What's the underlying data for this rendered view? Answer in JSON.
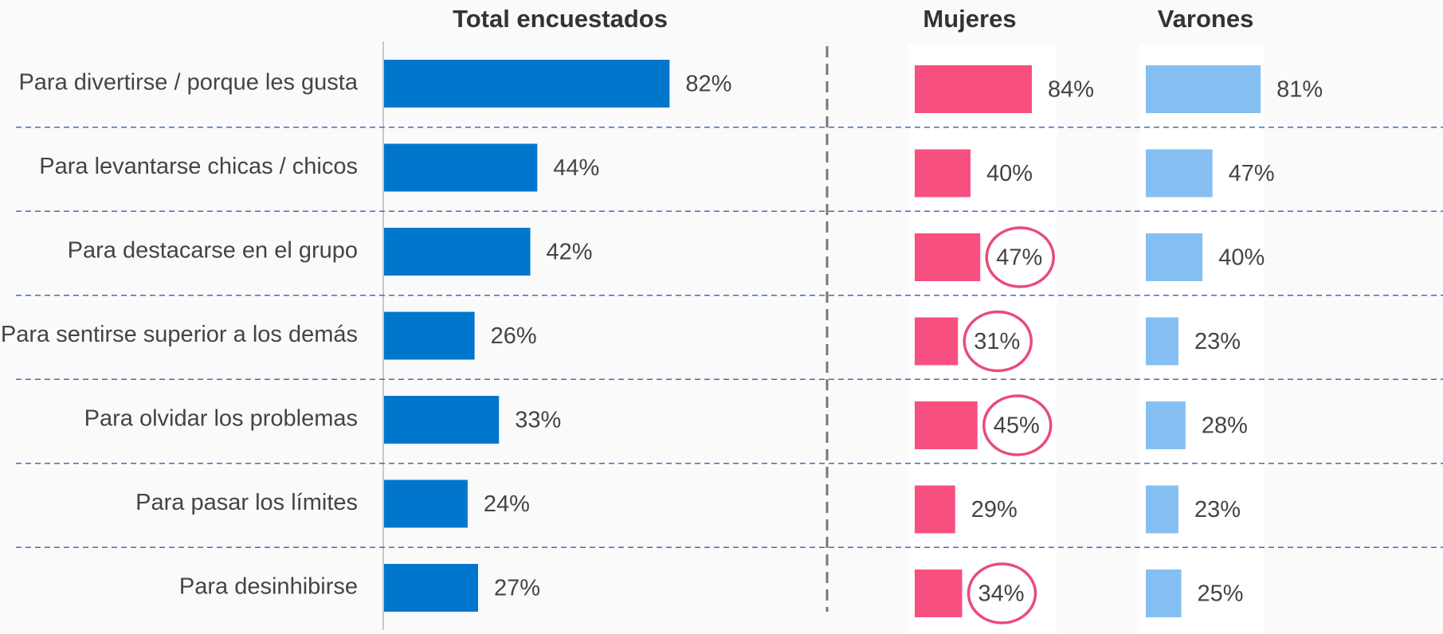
{
  "chart_data": {
    "type": "bar",
    "orientation": "horizontal",
    "categories": [
      "Para divertirse / porque les gusta",
      "Para levantarse chicas / chicos",
      "Para destacarse en el grupo",
      "Para sentirse superior a los demás",
      "Para olvidar los problemas",
      "Para pasar los límites",
      "Para desinhibirse"
    ],
    "xlim": [
      0,
      100
    ],
    "series": [
      {
        "name": "Total encuestados",
        "color": "#0077cc",
        "values": [
          82,
          44,
          42,
          26,
          33,
          24,
          27
        ],
        "value_labels": [
          "82%",
          "44%",
          "42%",
          "26%",
          "33%",
          "24%",
          "27%"
        ]
      },
      {
        "name": "Mujeres",
        "color": "#f74f7f",
        "values": [
          84,
          40,
          47,
          31,
          45,
          29,
          34
        ],
        "value_labels": [
          "84%",
          "40%",
          "47%",
          "31%",
          "45%",
          "29%",
          "34%"
        ],
        "highlighted": [
          2,
          3,
          4,
          6
        ]
      },
      {
        "name": "Varones",
        "color": "#85bff2",
        "values": [
          81,
          47,
          40,
          23,
          28,
          23,
          25
        ],
        "value_labels": [
          "81%",
          "47%",
          "40%",
          "23%",
          "28%",
          "23%",
          "25%"
        ]
      }
    ]
  }
}
